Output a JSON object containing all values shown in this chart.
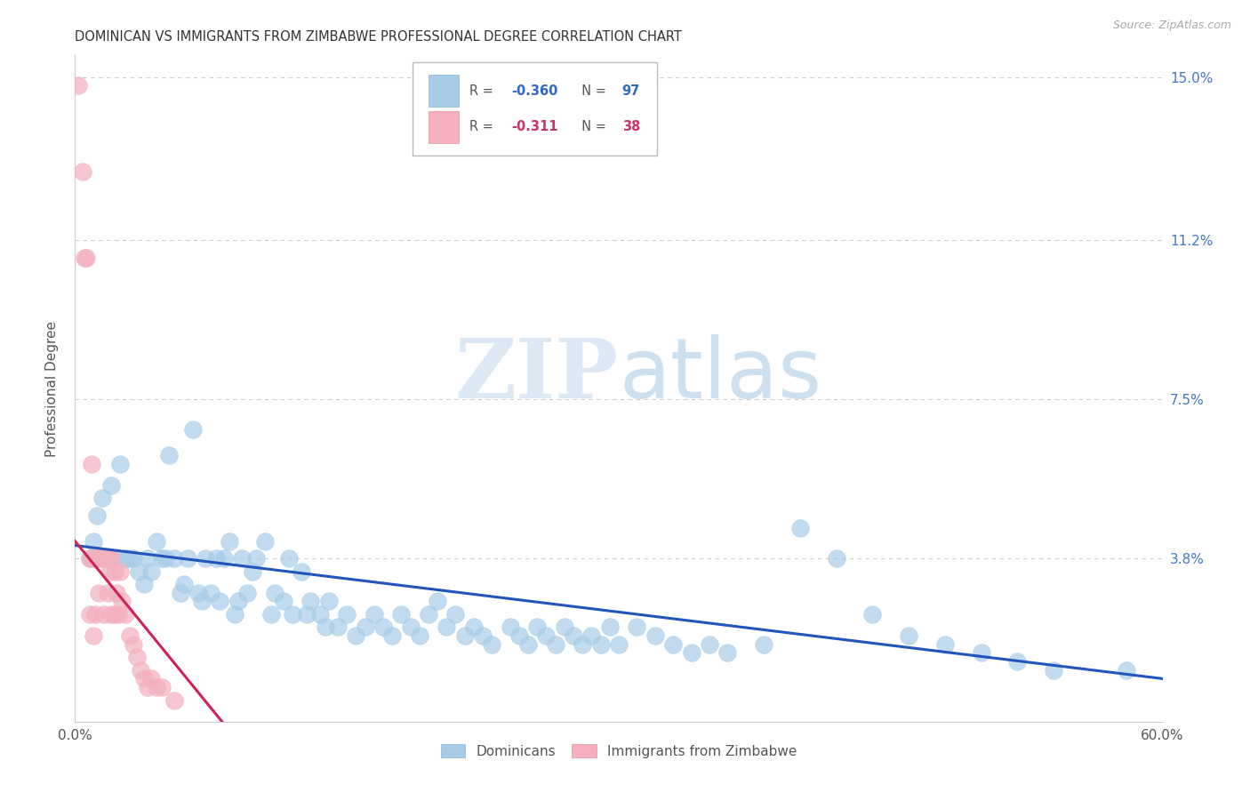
{
  "title": "DOMINICAN VS IMMIGRANTS FROM ZIMBABWE PROFESSIONAL DEGREE CORRELATION CHART",
  "source": "Source: ZipAtlas.com",
  "ylabel": "Professional Degree",
  "xlim": [
    0.0,
    0.6
  ],
  "ylim": [
    0.0,
    0.155
  ],
  "yticks": [
    0.0,
    0.038,
    0.075,
    0.112,
    0.15
  ],
  "ytick_labels": [
    "",
    "3.8%",
    "7.5%",
    "11.2%",
    "15.0%"
  ],
  "xticks": [
    0.0,
    0.1,
    0.2,
    0.3,
    0.4,
    0.5,
    0.6
  ],
  "xtick_labels": [
    "0.0%",
    "",
    "",
    "",
    "",
    "",
    "60.0%"
  ],
  "grid_color": "#cccccc",
  "blue_color": "#a8cce8",
  "pink_color": "#f4b0be",
  "blue_line_color": "#2255bb",
  "pink_line_color": "#cc2255",
  "legend_R1": "-0.360",
  "legend_N1": "97",
  "legend_R2": "-0.311",
  "legend_N2": "38",
  "watermark_zip": "ZIP",
  "watermark_atlas": "atlas",
  "dominicans_x": [
    0.008,
    0.01,
    0.012,
    0.015,
    0.018,
    0.02,
    0.022,
    0.025,
    0.028,
    0.03,
    0.032,
    0.035,
    0.038,
    0.04,
    0.042,
    0.045,
    0.048,
    0.05,
    0.052,
    0.055,
    0.058,
    0.06,
    0.062,
    0.065,
    0.068,
    0.07,
    0.072,
    0.075,
    0.078,
    0.08,
    0.082,
    0.085,
    0.088,
    0.09,
    0.092,
    0.095,
    0.098,
    0.1,
    0.105,
    0.108,
    0.11,
    0.115,
    0.118,
    0.12,
    0.125,
    0.128,
    0.13,
    0.135,
    0.138,
    0.14,
    0.145,
    0.15,
    0.155,
    0.16,
    0.165,
    0.17,
    0.175,
    0.18,
    0.185,
    0.19,
    0.195,
    0.2,
    0.205,
    0.21,
    0.215,
    0.22,
    0.225,
    0.23,
    0.24,
    0.245,
    0.25,
    0.255,
    0.26,
    0.265,
    0.27,
    0.275,
    0.28,
    0.285,
    0.29,
    0.295,
    0.3,
    0.31,
    0.32,
    0.33,
    0.34,
    0.35,
    0.36,
    0.38,
    0.4,
    0.42,
    0.44,
    0.46,
    0.48,
    0.5,
    0.52,
    0.54,
    0.58
  ],
  "dominicans_y": [
    0.038,
    0.042,
    0.048,
    0.052,
    0.038,
    0.055,
    0.038,
    0.06,
    0.038,
    0.038,
    0.038,
    0.035,
    0.032,
    0.038,
    0.035,
    0.042,
    0.038,
    0.038,
    0.062,
    0.038,
    0.03,
    0.032,
    0.038,
    0.068,
    0.03,
    0.028,
    0.038,
    0.03,
    0.038,
    0.028,
    0.038,
    0.042,
    0.025,
    0.028,
    0.038,
    0.03,
    0.035,
    0.038,
    0.042,
    0.025,
    0.03,
    0.028,
    0.038,
    0.025,
    0.035,
    0.025,
    0.028,
    0.025,
    0.022,
    0.028,
    0.022,
    0.025,
    0.02,
    0.022,
    0.025,
    0.022,
    0.02,
    0.025,
    0.022,
    0.02,
    0.025,
    0.028,
    0.022,
    0.025,
    0.02,
    0.022,
    0.02,
    0.018,
    0.022,
    0.02,
    0.018,
    0.022,
    0.02,
    0.018,
    0.022,
    0.02,
    0.018,
    0.02,
    0.018,
    0.022,
    0.018,
    0.022,
    0.02,
    0.018,
    0.016,
    0.018,
    0.016,
    0.018,
    0.045,
    0.038,
    0.025,
    0.02,
    0.018,
    0.016,
    0.014,
    0.012,
    0.012
  ],
  "zimbabwe_x": [
    0.002,
    0.004,
    0.005,
    0.006,
    0.008,
    0.008,
    0.009,
    0.01,
    0.01,
    0.011,
    0.012,
    0.013,
    0.014,
    0.015,
    0.016,
    0.017,
    0.018,
    0.018,
    0.019,
    0.02,
    0.02,
    0.022,
    0.022,
    0.023,
    0.024,
    0.025,
    0.026,
    0.028,
    0.03,
    0.032,
    0.034,
    0.036,
    0.038,
    0.04,
    0.042,
    0.045,
    0.048,
    0.055
  ],
  "zimbabwe_y": [
    0.148,
    0.128,
    0.108,
    0.108,
    0.038,
    0.025,
    0.06,
    0.038,
    0.02,
    0.025,
    0.038,
    0.03,
    0.038,
    0.038,
    0.025,
    0.038,
    0.038,
    0.03,
    0.035,
    0.038,
    0.025,
    0.035,
    0.025,
    0.03,
    0.025,
    0.035,
    0.028,
    0.025,
    0.02,
    0.018,
    0.015,
    0.012,
    0.01,
    0.008,
    0.01,
    0.008,
    0.008,
    0.005
  ]
}
